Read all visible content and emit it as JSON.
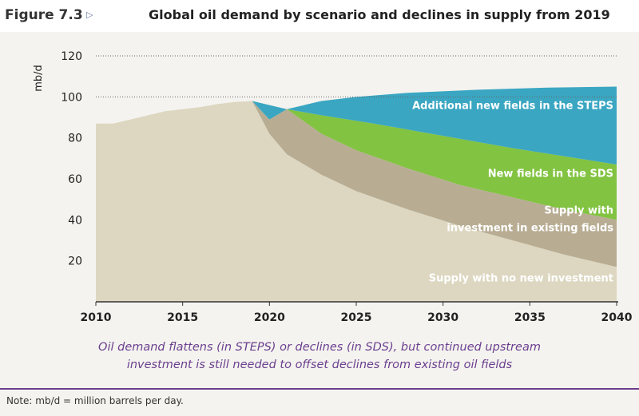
{
  "figure": {
    "label": "Figure 7.3",
    "arrow": "▷",
    "title": "Global oil demand by scenario and declines in supply from 2019"
  },
  "chart_data": {
    "type": "area",
    "ylabel": "mb/d",
    "xlabel": "",
    "xlim": [
      2010,
      2040
    ],
    "ylim": [
      0,
      120
    ],
    "x_ticks": [
      2010,
      2015,
      2020,
      2025,
      2030,
      2035,
      2040
    ],
    "y_ticks": [
      20,
      40,
      60,
      80,
      100,
      120
    ],
    "grid": "dotted at 100 and 120",
    "series": [
      {
        "name": "Additional new fields in the STEPS",
        "color": "#3aa6c2",
        "upper": [
          [
            2019,
            98
          ],
          [
            2020,
            89
          ],
          [
            2021,
            94
          ],
          [
            2023,
            98
          ],
          [
            2025,
            100
          ],
          [
            2028,
            102
          ],
          [
            2032,
            103.5
          ],
          [
            2036,
            104.5
          ],
          [
            2040,
            105
          ]
        ],
        "lower": [
          [
            2021,
            94
          ],
          [
            2023,
            91
          ],
          [
            2026,
            87
          ],
          [
            2030,
            81
          ],
          [
            2034,
            75
          ],
          [
            2037,
            71
          ],
          [
            2040,
            67
          ]
        ]
      },
      {
        "name": "New fields in the SDS",
        "color": "#82c341",
        "upper": [
          [
            2021,
            94
          ],
          [
            2023,
            91
          ],
          [
            2026,
            87
          ],
          [
            2030,
            81
          ],
          [
            2034,
            75
          ],
          [
            2037,
            71
          ],
          [
            2040,
            67
          ]
        ],
        "lower": [
          [
            2021,
            94
          ],
          [
            2023,
            82
          ],
          [
            2025,
            74
          ],
          [
            2028,
            65
          ],
          [
            2031,
            57
          ],
          [
            2034,
            51
          ],
          [
            2037,
            45
          ],
          [
            2040,
            40
          ]
        ]
      },
      {
        "name": "Supply with investment in existing fields",
        "color": "#b8ad93",
        "upper": [
          [
            2019,
            98
          ],
          [
            2020,
            89
          ],
          [
            2021,
            94
          ],
          [
            2023,
            82
          ],
          [
            2025,
            74
          ],
          [
            2028,
            65
          ],
          [
            2031,
            57
          ],
          [
            2034,
            51
          ],
          [
            2037,
            45
          ],
          [
            2040,
            40
          ]
        ],
        "lower": [
          [
            2019,
            98
          ],
          [
            2020,
            82
          ],
          [
            2021,
            72
          ],
          [
            2023,
            62
          ],
          [
            2025,
            54
          ],
          [
            2028,
            45
          ],
          [
            2031,
            37
          ],
          [
            2034,
            30
          ],
          [
            2037,
            23
          ],
          [
            2040,
            17
          ]
        ]
      },
      {
        "name": "Supply with no new investment",
        "color": "#ddd7c1",
        "upper": [
          [
            2010,
            87
          ],
          [
            2011,
            87
          ],
          [
            2012,
            89
          ],
          [
            2013,
            91
          ],
          [
            2014,
            93
          ],
          [
            2015,
            94
          ],
          [
            2016,
            95
          ],
          [
            2017,
            96.5
          ],
          [
            2018,
            97.5
          ],
          [
            2019,
            98
          ],
          [
            2020,
            82
          ],
          [
            2021,
            72
          ],
          [
            2023,
            62
          ],
          [
            2025,
            54
          ],
          [
            2028,
            45
          ],
          [
            2031,
            37
          ],
          [
            2034,
            30
          ],
          [
            2037,
            23
          ],
          [
            2040,
            17
          ]
        ],
        "lower": [
          [
            2010,
            0
          ],
          [
            2040,
            0
          ]
        ]
      }
    ],
    "labels": [
      {
        "lines": [
          "Additional new fields in the STEPS"
        ],
        "anchor": [
          2040,
          94
        ],
        "color": "#ffffff"
      },
      {
        "lines": [
          "New fields in the SDS"
        ],
        "anchor": [
          2040,
          61
        ],
        "color": "#ffffff"
      },
      {
        "lines": [
          "Supply with",
          "investment in existing fields"
        ],
        "anchor": [
          2040,
          43
        ],
        "color": "#ffffff"
      },
      {
        "lines": [
          "Supply with no new investment"
        ],
        "anchor": [
          2040,
          10
        ],
        "color": "#ffffff"
      }
    ]
  },
  "caption": {
    "line1": "Oil demand flattens (in STEPS) or declines (in SDS), but continued upstream",
    "line2": "investment is still needed to offset declines from existing oil fields"
  },
  "note": "Note: mb/d = million barrels per day."
}
